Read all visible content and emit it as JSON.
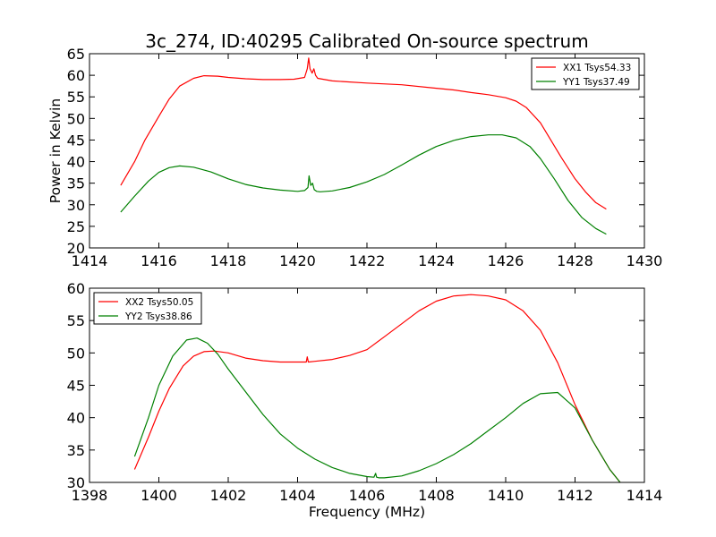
{
  "figure": {
    "title": "3c_274, ID:40295 Calibrated On-source spectrum"
  },
  "chart_data": [
    {
      "type": "line",
      "title": "3c_274, ID:40295 Calibrated On-source spectrum",
      "xlabel": "",
      "ylabel": "Power in Kelvin",
      "xlim": [
        1414,
        1430
      ],
      "ylim": [
        20,
        65
      ],
      "xticks": [
        "1414",
        "1416",
        "1418",
        "1420",
        "1422",
        "1424",
        "1426",
        "1428",
        "1430"
      ],
      "yticks": [
        "20",
        "25",
        "30",
        "35",
        "40",
        "45",
        "50",
        "55",
        "60",
        "65"
      ],
      "grid": false,
      "legend_position": "top-right",
      "series": [
        {
          "name": "XX1 Tsys54.33",
          "color": "#ff0000",
          "x": [
            1414.9,
            1415.3,
            1415.6,
            1416.0,
            1416.3,
            1416.6,
            1417.0,
            1417.3,
            1417.7,
            1418.0,
            1418.5,
            1419.0,
            1419.5,
            1419.9,
            1420.2,
            1420.28,
            1420.32,
            1420.36,
            1420.42,
            1420.47,
            1420.52,
            1420.58,
            1421.0,
            1422.0,
            1423.0,
            1424.0,
            1424.5,
            1425.0,
            1425.5,
            1426.0,
            1426.3,
            1426.6,
            1427.0,
            1427.3,
            1427.6,
            1428.0,
            1428.3,
            1428.6,
            1428.9
          ],
          "y": [
            34.5,
            40.0,
            45.0,
            50.5,
            54.5,
            57.5,
            59.3,
            59.9,
            59.8,
            59.5,
            59.2,
            59.0,
            59.0,
            59.1,
            59.5,
            61.5,
            64.0,
            61.5,
            60.5,
            61.5,
            60.0,
            59.3,
            58.7,
            58.2,
            57.8,
            57.0,
            56.6,
            56.0,
            55.5,
            54.8,
            54.0,
            52.5,
            49.0,
            45.0,
            41.0,
            36.0,
            33.0,
            30.5,
            29.0
          ]
        },
        {
          "name": "YY1 Tsys37.49",
          "color": "#008000",
          "x": [
            1414.9,
            1415.3,
            1415.7,
            1416.0,
            1416.3,
            1416.6,
            1417.0,
            1417.5,
            1418.0,
            1418.5,
            1419.0,
            1419.5,
            1420.0,
            1420.2,
            1420.3,
            1420.33,
            1420.38,
            1420.43,
            1420.48,
            1420.55,
            1420.65,
            1421.0,
            1421.5,
            1422.0,
            1422.5,
            1423.0,
            1423.5,
            1424.0,
            1424.5,
            1425.0,
            1425.5,
            1425.9,
            1426.3,
            1426.7,
            1427.0,
            1427.4,
            1427.8,
            1428.2,
            1428.6,
            1428.9
          ],
          "y": [
            28.3,
            32.0,
            35.5,
            37.5,
            38.6,
            39.0,
            38.7,
            37.6,
            36.0,
            34.7,
            33.9,
            33.4,
            33.1,
            33.3,
            34.0,
            36.7,
            34.5,
            35.0,
            33.5,
            33.1,
            33.0,
            33.2,
            34.0,
            35.3,
            37.0,
            39.2,
            41.5,
            43.5,
            44.9,
            45.8,
            46.2,
            46.2,
            45.5,
            43.5,
            40.7,
            36.0,
            31.0,
            27.0,
            24.5,
            23.2
          ]
        }
      ]
    },
    {
      "type": "line",
      "title": "",
      "xlabel": "Frequency (MHz)",
      "ylabel": "",
      "xlim": [
        1398,
        1414
      ],
      "ylim": [
        30,
        60
      ],
      "xticks": [
        "1398",
        "1400",
        "1402",
        "1404",
        "1406",
        "1408",
        "1410",
        "1412",
        "1414"
      ],
      "yticks": [
        "30",
        "35",
        "40",
        "45",
        "50",
        "55",
        "60"
      ],
      "grid": false,
      "legend_position": "top-left",
      "series": [
        {
          "name": "XX2 Tsys50.05",
          "color": "#ff0000",
          "x": [
            1399.3,
            1399.7,
            1400.0,
            1400.3,
            1400.7,
            1401.0,
            1401.3,
            1401.6,
            1402.0,
            1402.5,
            1403.0,
            1403.5,
            1404.0,
            1404.25,
            1404.28,
            1404.31,
            1404.5,
            1405.0,
            1405.5,
            1406.0,
            1406.5,
            1407.0,
            1407.5,
            1408.0,
            1408.5,
            1409.0,
            1409.5,
            1410.0,
            1410.5,
            1411.0,
            1411.5,
            1412.0,
            1412.5,
            1413.0,
            1413.3
          ],
          "y": [
            32.0,
            37.0,
            41.0,
            44.5,
            48.0,
            49.5,
            50.2,
            50.3,
            50.0,
            49.2,
            48.8,
            48.6,
            48.6,
            48.6,
            49.4,
            48.6,
            48.7,
            49.0,
            49.6,
            50.5,
            52.5,
            54.5,
            56.5,
            58.0,
            58.8,
            59.0,
            58.8,
            58.2,
            56.5,
            53.5,
            48.5,
            42.0,
            36.5,
            32.0,
            30.0
          ]
        },
        {
          "name": "YY2 Tsys38.86",
          "color": "#008000",
          "x": [
            1399.3,
            1399.7,
            1400.0,
            1400.4,
            1400.8,
            1401.1,
            1401.4,
            1401.7,
            1402.0,
            1402.5,
            1403.0,
            1403.5,
            1404.0,
            1404.5,
            1405.0,
            1405.5,
            1406.0,
            1406.2,
            1406.25,
            1406.28,
            1406.35,
            1406.5,
            1407.0,
            1407.5,
            1408.0,
            1408.5,
            1409.0,
            1409.5,
            1410.0,
            1410.5,
            1411.0,
            1411.5,
            1412.0,
            1412.5,
            1413.0,
            1413.3
          ],
          "y": [
            34.0,
            40.0,
            45.0,
            49.5,
            52.0,
            52.3,
            51.5,
            49.8,
            47.5,
            44.0,
            40.5,
            37.5,
            35.3,
            33.6,
            32.3,
            31.4,
            30.9,
            30.8,
            31.4,
            30.8,
            30.7,
            30.7,
            31.0,
            31.8,
            32.9,
            34.3,
            36.0,
            38.0,
            40.0,
            42.2,
            43.7,
            43.9,
            41.5,
            36.5,
            32.0,
            30.0
          ]
        }
      ]
    }
  ]
}
